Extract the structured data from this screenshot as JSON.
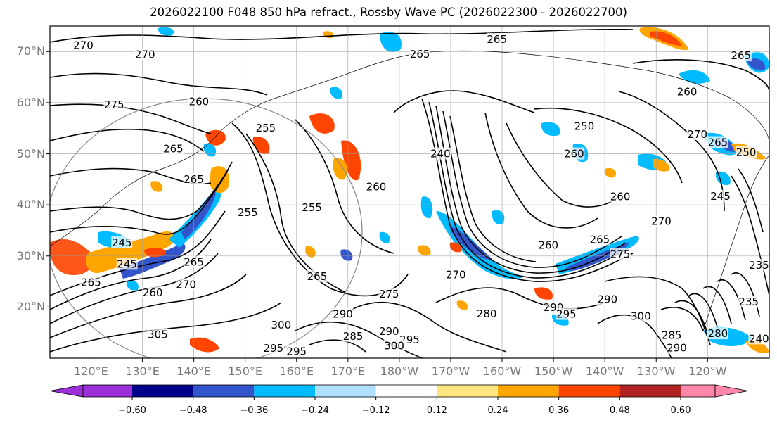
{
  "title": "2026022100 F048 850 hPa refract., Rossby Wave PC (2026022300 - 2026022700)",
  "map": {
    "lat_labels": [
      "70°N",
      "60°N",
      "50°N",
      "40°N",
      "30°N",
      "20°N"
    ],
    "lat_values": [
      70,
      60,
      50,
      40,
      30,
      20
    ],
    "lon_labels": [
      "120°E",
      "130°E",
      "140°E",
      "150°E",
      "160°E",
      "170°E",
      "180°W",
      "170°W",
      "160°W",
      "150°W",
      "140°W",
      "130°W",
      "120°W"
    ],
    "lon_values": [
      120,
      130,
      140,
      150,
      160,
      170,
      180,
      190,
      200,
      210,
      220,
      230,
      240
    ],
    "lat_range": [
      10,
      75
    ],
    "lon_range": [
      112,
      252
    ],
    "grid": true,
    "contour_color": "#000000",
    "contour_labels": [
      {
        "text": "265",
        "lon": 199,
        "lat": 72.4
      },
      {
        "text": "270",
        "lon": 118.5,
        "lat": 71.2
      },
      {
        "text": "270",
        "lon": 130.5,
        "lat": 69.4
      },
      {
        "text": "265",
        "lon": 184,
        "lat": 69.5
      },
      {
        "text": "275",
        "lon": 124.5,
        "lat": 59.6
      },
      {
        "text": "260",
        "lon": 141,
        "lat": 60.2
      },
      {
        "text": "255",
        "lon": 154,
        "lat": 55
      },
      {
        "text": "265",
        "lon": 136,
        "lat": 51
      },
      {
        "text": "265",
        "lon": 140,
        "lat": 45
      },
      {
        "text": "260",
        "lon": 175.5,
        "lat": 43.5
      },
      {
        "text": "240",
        "lon": 188,
        "lat": 50
      },
      {
        "text": "250",
        "lon": 216,
        "lat": 55.4
      },
      {
        "text": "260",
        "lon": 214,
        "lat": 50
      },
      {
        "text": "260",
        "lon": 223,
        "lat": 41.6
      },
      {
        "text": "255",
        "lon": 150.5,
        "lat": 38.5
      },
      {
        "text": "255",
        "lon": 163,
        "lat": 39.5
      },
      {
        "text": "270",
        "lon": 238,
        "lat": 53.8
      },
      {
        "text": "265",
        "lon": 242,
        "lat": 52.2
      },
      {
        "text": "260",
        "lon": 236,
        "lat": 62.1
      },
      {
        "text": "270",
        "lon": 231,
        "lat": 36.8
      },
      {
        "text": "265",
        "lon": 219,
        "lat": 33.2
      },
      {
        "text": "260",
        "lon": 209,
        "lat": 32.1
      },
      {
        "text": "275",
        "lon": 223,
        "lat": 30.3
      },
      {
        "text": "245",
        "lon": 126,
        "lat": 32.6
      },
      {
        "text": "245",
        "lon": 127,
        "lat": 28.4
      },
      {
        "text": "265",
        "lon": 120,
        "lat": 24.8
      },
      {
        "text": "260",
        "lon": 132,
        "lat": 22.8
      },
      {
        "text": "265",
        "lon": 140,
        "lat": 28.8
      },
      {
        "text": "270",
        "lon": 138.5,
        "lat": 24.4
      },
      {
        "text": "265",
        "lon": 164,
        "lat": 26
      },
      {
        "text": "270",
        "lon": 191,
        "lat": 26.3
      },
      {
        "text": "275",
        "lon": 178,
        "lat": 22.5
      },
      {
        "text": "280",
        "lon": 197,
        "lat": 18.7
      },
      {
        "text": "290",
        "lon": 169,
        "lat": 18.6
      },
      {
        "text": "300",
        "lon": 157,
        "lat": 16.5
      },
      {
        "text": "305",
        "lon": 133,
        "lat": 14.6
      },
      {
        "text": "290",
        "lon": 178,
        "lat": 15.2
      },
      {
        "text": "295",
        "lon": 182,
        "lat": 13.6
      },
      {
        "text": "300",
        "lon": 179,
        "lat": 12.4
      },
      {
        "text": "285",
        "lon": 171,
        "lat": 14.3
      },
      {
        "text": "290",
        "lon": 210,
        "lat": 19.9
      },
      {
        "text": "295",
        "lon": 212.5,
        "lat": 18.6
      },
      {
        "text": "300",
        "lon": 227,
        "lat": 18.2
      },
      {
        "text": "290",
        "lon": 220.5,
        "lat": 21.5
      },
      {
        "text": "295",
        "lon": 155.5,
        "lat": 11.9
      },
      {
        "text": "295",
        "lon": 160,
        "lat": 11.3
      },
      {
        "text": "280",
        "lon": 242,
        "lat": 14.8
      },
      {
        "text": "285",
        "lon": 233,
        "lat": 14.5
      },
      {
        "text": "290",
        "lon": 234,
        "lat": 12
      },
      {
        "text": "235",
        "lon": 248,
        "lat": 21
      },
      {
        "text": "235",
        "lon": 250,
        "lat": 28.2
      },
      {
        "text": "245",
        "lon": 242.5,
        "lat": 41.7
      },
      {
        "text": "250",
        "lon": 247.5,
        "lat": 50.3
      },
      {
        "text": "265",
        "lon": 246.5,
        "lat": 69.2
      },
      {
        "text": "240",
        "lon": 250,
        "lat": 13.8
      }
    ]
  },
  "colorbar": {
    "ticks": [
      "−0.60",
      "−0.48",
      "−0.36",
      "−0.24",
      "−0.12",
      "0.12",
      "0.24",
      "0.36",
      "0.48",
      "0.60"
    ],
    "colors": [
      "#9b30d8",
      "#00008b",
      "#3355cc",
      "#00bbff",
      "#b0e0ff",
      "#ffffff",
      "#ffe680",
      "#ffa500",
      "#ff4500",
      "#b22222",
      "#ff88aa"
    ],
    "extend": "both"
  }
}
